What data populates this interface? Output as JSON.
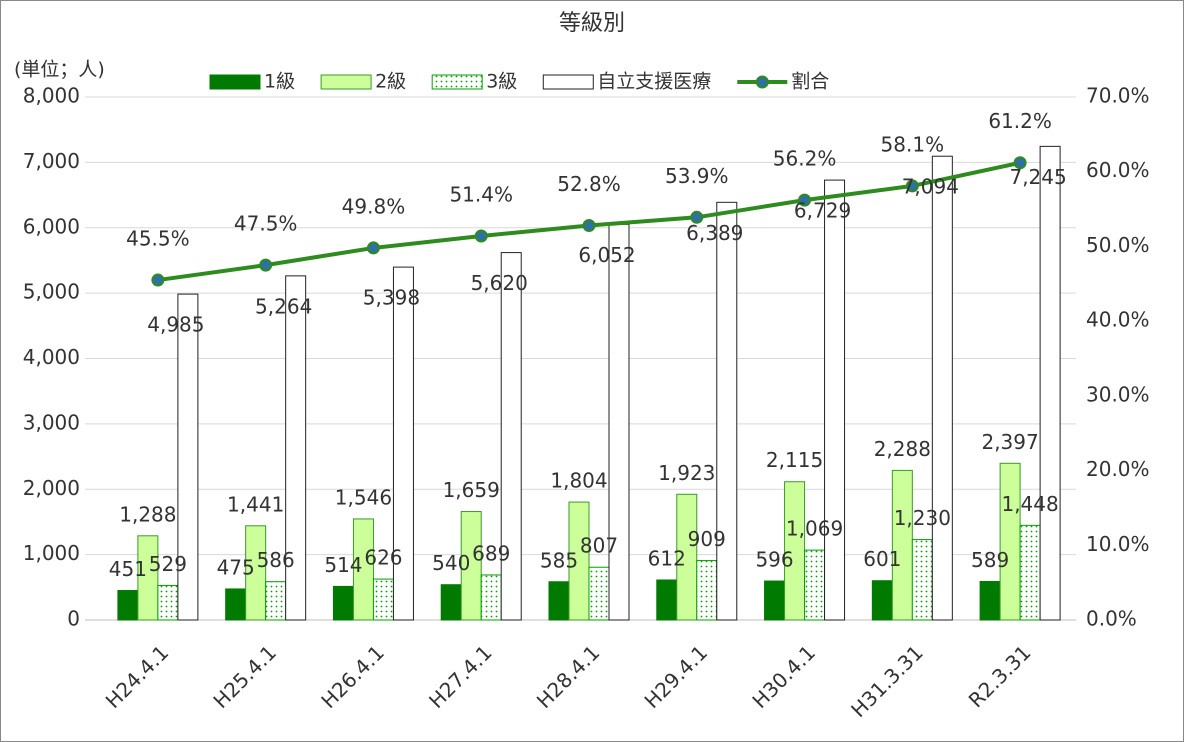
{
  "chart_data": {
    "type": "bar",
    "title": "等級別",
    "y_label": "(単位；人)",
    "categories": [
      "H24.4.1",
      "H25.4.1",
      "H26.4.1",
      "H27.4.1",
      "H28.4.1",
      "H29.4.1",
      "H30.4.1",
      "H31.3.31",
      "R2.3.31"
    ],
    "series": [
      {
        "name": "1級",
        "color": "#007a00",
        "values": [
          451,
          475,
          514,
          540,
          585,
          612,
          596,
          601,
          589
        ]
      },
      {
        "name": "2級",
        "color": "#ccff99",
        "values": [
          1288,
          1441,
          1546,
          1659,
          1804,
          1923,
          2115,
          2288,
          2397
        ],
        "value_labels": [
          "1,288",
          "1,441",
          "1,546",
          "1,659",
          "1,804",
          "1,923",
          "2,115",
          "2,288",
          "2,397"
        ]
      },
      {
        "name": "3級",
        "color": "#00a000",
        "pattern": "dots",
        "values": [
          529,
          586,
          626,
          689,
          807,
          909,
          1069,
          1230,
          1448
        ],
        "value_labels": [
          "529",
          "586",
          "626",
          "689",
          "807",
          "909",
          "1,069",
          "1,230",
          "1,448"
        ]
      },
      {
        "name": "自立支援医療",
        "color": "#ffffff",
        "values": [
          4985,
          5264,
          5398,
          5620,
          6052,
          6389,
          6729,
          7094,
          7245
        ],
        "value_labels": [
          "4,985",
          "5,264",
          "5,398",
          "5,620",
          "6,052",
          "6,389",
          "6,729",
          "7,094",
          "7,245"
        ]
      },
      {
        "name": "割合",
        "type": "line",
        "axis": "y2",
        "color": "#2e8b1e",
        "marker_color": "#2f6fa8",
        "values": [
          45.5,
          47.5,
          49.8,
          51.4,
          52.8,
          53.9,
          56.2,
          58.1,
          61.2
        ],
        "value_labels": [
          "45.5%",
          "47.5%",
          "49.8%",
          "51.4%",
          "52.8%",
          "53.9%",
          "56.2%",
          "58.1%",
          "61.2%"
        ]
      }
    ],
    "ylim": [
      0,
      8000
    ],
    "yticks": [
      0,
      {
        "value": 1000,
        "label": "1,000"
      },
      {
        "value": 2000,
        "label": "2,000"
      },
      {
        "value": 3000,
        "label": "3,000"
      },
      {
        "value": 4000,
        "label": "4,000"
      },
      {
        "value": 5000,
        "label": "5,000"
      },
      {
        "value": 6000,
        "label": "6,000"
      },
      {
        "value": 7000,
        "label": "7,000"
      },
      {
        "value": 8000,
        "label": "8,000"
      }
    ],
    "y2lim": [
      0,
      70
    ],
    "y2ticks": [
      {
        "value": 0,
        "label": "0.0%"
      },
      {
        "value": 10,
        "label": "10.0%"
      },
      {
        "value": 20,
        "label": "20.0%"
      },
      {
        "value": 30,
        "label": "30.0%"
      },
      {
        "value": 40,
        "label": "40.0%"
      },
      {
        "value": 50,
        "label": "50.0%"
      },
      {
        "value": 60,
        "label": "60.0%"
      },
      {
        "value": 70,
        "label": "70.0%"
      }
    ],
    "grid": true,
    "legend": "top"
  }
}
